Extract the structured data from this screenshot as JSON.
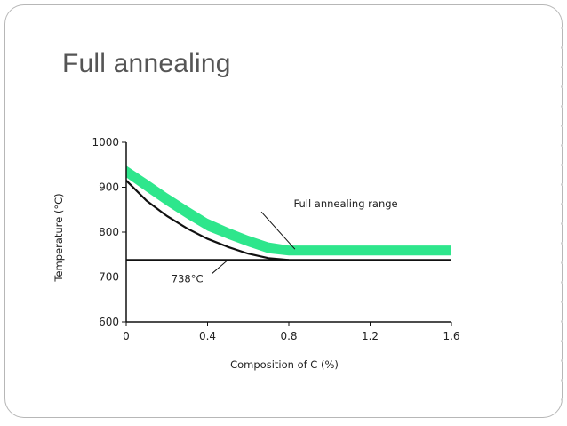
{
  "slide": {
    "title": "Full annealing"
  },
  "chart_data": {
    "type": "line",
    "title": "",
    "xlabel": "Composition of C (%)",
    "ylabel": "Temperature (°C)",
    "xlim": [
      0,
      1.6
    ],
    "ylim": [
      600,
      1000
    ],
    "xticks": [
      "0",
      "0.4",
      "0.8",
      "1.2",
      "1.6"
    ],
    "yticks": [
      "600",
      "700",
      "800",
      "900",
      "1000"
    ],
    "grid": false,
    "series": [
      {
        "kind": "band",
        "color": "#2ee68c",
        "x": [
          0,
          0.1,
          0.2,
          0.3,
          0.4,
          0.5,
          0.6,
          0.7,
          0.8,
          1.0,
          1.2,
          1.4,
          1.6
        ],
        "lower": [
          922,
          890,
          859,
          830,
          803,
          785,
          768,
          753,
          748,
          748,
          748,
          748,
          748
        ],
        "upper": [
          948,
          918,
          887,
          858,
          830,
          810,
          792,
          777,
          770,
          770,
          770,
          770,
          770
        ]
      },
      {
        "kind": "line",
        "color": "#111111",
        "x": [
          0,
          0.1,
          0.2,
          0.3,
          0.4,
          0.5,
          0.6,
          0.7,
          0.8
        ],
        "y": [
          915,
          870,
          836,
          808,
          785,
          767,
          752,
          742,
          738
        ]
      },
      {
        "kind": "line",
        "color": "#111111",
        "x": [
          0,
          1.6
        ],
        "y": [
          738,
          738
        ]
      }
    ],
    "annotations": [
      {
        "text": "Full annealing range",
        "x": 1.08,
        "y": 855,
        "arrow_to": [
          0.83,
          762
        ]
      },
      {
        "text": "738°C",
        "x": 0.3,
        "y": 688,
        "arrow_to": [
          0.5,
          738
        ]
      }
    ]
  }
}
